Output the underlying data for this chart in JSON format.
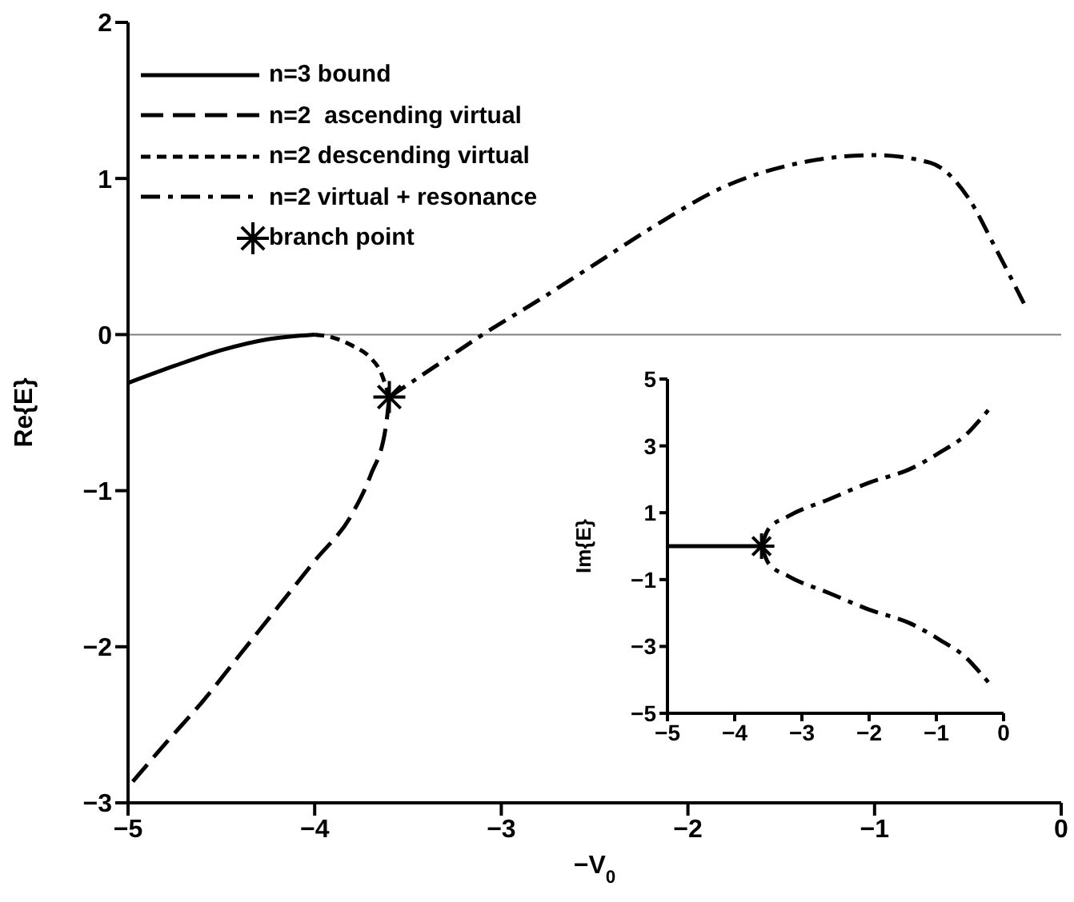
{
  "chart_data": [
    {
      "type": "line",
      "xlabel": "−V$_{0}$",
      "ylabel": "Re{E}",
      "xlim": [
        -5,
        0
      ],
      "ylim": [
        -3,
        2
      ],
      "xticks": [
        -5,
        -4,
        -3,
        -2,
        -1,
        0
      ],
      "yticks": [
        -3,
        -2,
        -1,
        0,
        1,
        2
      ],
      "legend": "top left",
      "ref_lines": [
        {
          "axis": "y",
          "value": 0,
          "color": "#808080"
        }
      ],
      "series": [
        {
          "name": "n=3 bound",
          "color": "#000000",
          "line_style": "solid",
          "marker": "none",
          "x": [
            -5,
            -4.75,
            -4.5,
            -4.25,
            -4.0
          ],
          "values": [
            -0.31,
            -0.2,
            -0.1,
            -0.03,
            0.0
          ]
        },
        {
          "name": "n=2  ascending virtual",
          "color": "#000000",
          "line_style": "dashed",
          "marker": "none",
          "x": [
            -3.6,
            -3.62,
            -3.7,
            -3.8,
            -4.0,
            -4.2,
            -4.4,
            -4.6,
            -4.8,
            -5
          ],
          "values": [
            -0.4,
            -0.6,
            -0.9,
            -1.15,
            -1.45,
            -1.75,
            -2.05,
            -2.35,
            -2.62,
            -2.9
          ]
        },
        {
          "name": "n=2 descending virtual",
          "color": "#000000",
          "line_style": "dotted",
          "marker": "none",
          "x": [
            -4.0,
            -3.9,
            -3.8,
            -3.7,
            -3.65,
            -3.6
          ],
          "values": [
            0.0,
            -0.02,
            -0.07,
            -0.15,
            -0.23,
            -0.4
          ]
        },
        {
          "name": "n=2 virtual + resonance",
          "color": "#000000",
          "line_style": "dashdot",
          "marker": "none",
          "x": [
            -3.6,
            -3.3,
            -3.1,
            -2.8,
            -2.5,
            -2.2,
            -1.8,
            -1.4,
            -1.0,
            -0.7,
            -0.5,
            -0.35,
            -0.2
          ],
          "values": [
            -0.4,
            -0.16,
            0,
            0.22,
            0.45,
            0.68,
            0.95,
            1.1,
            1.15,
            1.1,
            0.88,
            0.55,
            0.2
          ]
        },
        {
          "name": "branch point",
          "type": "scatter",
          "color": "#000000",
          "marker": "cross",
          "x": [
            -3.6
          ],
          "values": [
            -0.4
          ]
        }
      ]
    },
    {
      "type": "line",
      "ylabel": "Im{E}",
      "xlim": [
        -5,
        0
      ],
      "ylim": [
        -5,
        5
      ],
      "xticks": [
        -5,
        -4,
        -3,
        -2,
        -1,
        0
      ],
      "yticks": [
        -5,
        -3,
        -1,
        1,
        3,
        5
      ],
      "series": [
        {
          "color": "#000000",
          "line_style": "solid",
          "x": [
            -5,
            -3.6
          ],
          "values": [
            0,
            0
          ]
        },
        {
          "color": "#000000",
          "line_style": "dashdot",
          "marker": "none",
          "x": [
            -3.6,
            -3.5,
            -3.2,
            -2.6,
            -2.0,
            -1.4,
            -0.95,
            -0.55,
            -0.3,
            -0.15
          ],
          "values": [
            0,
            0.5,
            0.9,
            1.4,
            1.9,
            2.3,
            2.8,
            3.35,
            3.9,
            4.25
          ]
        },
        {
          "color": "#000000",
          "line_style": "dashdot",
          "marker": "none",
          "x": [
            -3.6,
            -3.5,
            -3.2,
            -2.6,
            -2.0,
            -1.4,
            -0.95,
            -0.55,
            -0.3,
            -0.15
          ],
          "values": [
            0,
            -0.5,
            -0.9,
            -1.4,
            -1.9,
            -2.3,
            -2.8,
            -3.35,
            -3.9,
            -4.25
          ]
        },
        {
          "type": "scatter",
          "color": "#000000",
          "marker": "cross",
          "x": [
            -3.6
          ],
          "values": [
            0
          ]
        }
      ]
    }
  ]
}
